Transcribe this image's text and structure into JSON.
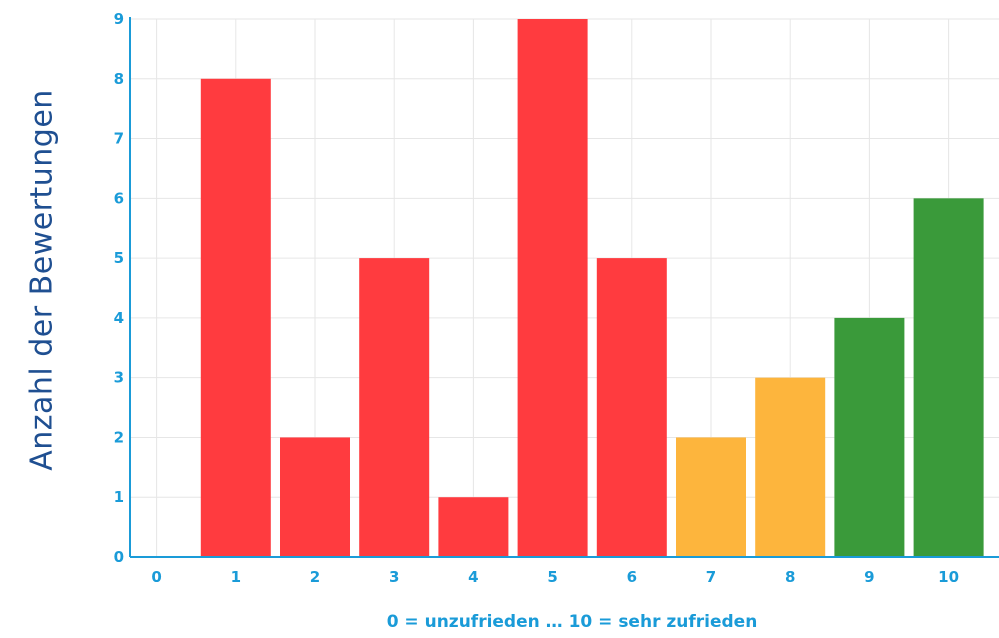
{
  "chart_data": {
    "type": "bar",
    "categories": [
      "0",
      "1",
      "2",
      "3",
      "4",
      "5",
      "6",
      "7",
      "8",
      "9",
      "10"
    ],
    "values": [
      0,
      8,
      2,
      5,
      1,
      9,
      5,
      2,
      3,
      4,
      6
    ],
    "bar_colors": [
      "#ff3b3f",
      "#ff3b3f",
      "#ff3b3f",
      "#ff3b3f",
      "#ff3b3f",
      "#ff3b3f",
      "#ff3b3f",
      "#fdb53d",
      "#fdb53d",
      "#3a9a3a",
      "#3a9a3a"
    ],
    "ylabel": "Anzahl der Bewertungen",
    "xlabel": "0 = unzufrieden … 10 = sehr zufrieden",
    "ylim": [
      0,
      9
    ],
    "yticks": [
      "0",
      "1",
      "2",
      "3",
      "4",
      "5",
      "6",
      "7",
      "8",
      "9"
    ],
    "grid": true,
    "axis_color": "#1a9bd8",
    "grid_color": "#e6e6e6"
  }
}
